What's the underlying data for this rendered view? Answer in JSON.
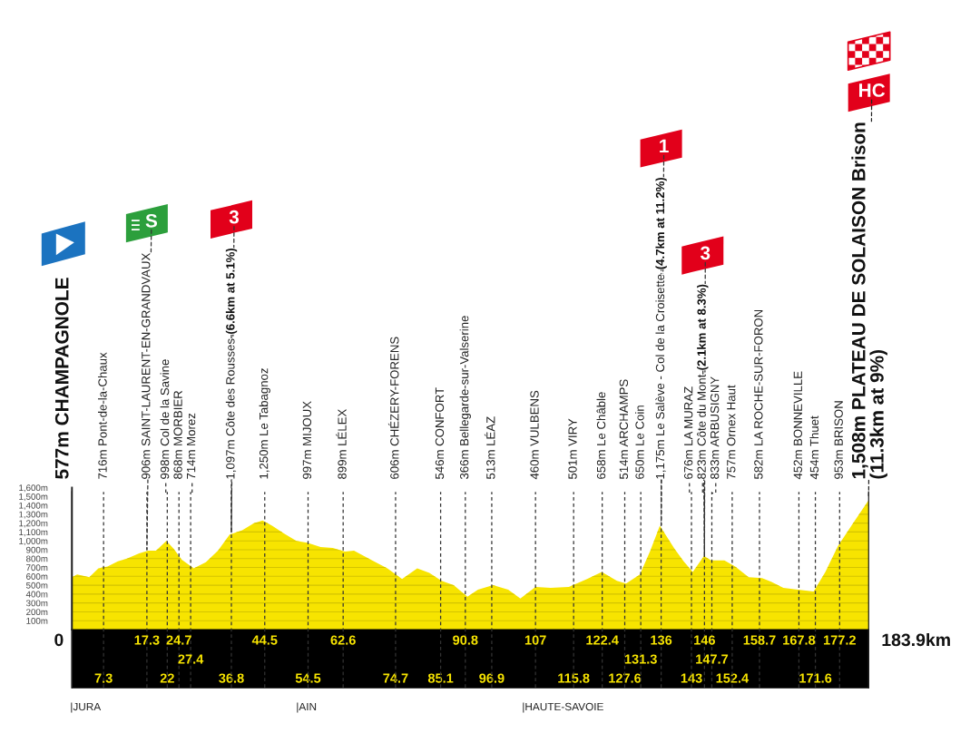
{
  "chart_data": {
    "type": "area",
    "x": [
      0,
      1.2,
      4.0,
      6.1,
      8.2,
      10.6,
      12.7,
      15.5,
      17.6,
      19.4,
      21.8,
      23.5,
      25.3,
      28.1,
      30.9,
      33.7,
      36.4,
      39.3,
      42.0,
      44.0,
      46.2,
      49.0,
      51.8,
      54.3,
      57.4,
      60.2,
      63.0,
      65.1,
      69.3,
      72.8,
      76.2,
      79.7,
      82.5,
      85.3,
      88.1,
      91.3,
      93.7,
      97.2,
      100.7,
      103.5,
      107.0,
      110.5,
      114.7,
      118.9,
      122.3,
      125.8,
      127.9,
      131.1,
      133.5,
      135.7,
      139.1,
      141.2,
      143.3,
      145.9,
      147.5,
      150.6,
      153.1,
      156.2,
      159.3,
      161.4,
      164.2,
      167.6,
      171.2,
      173.9,
      176.8,
      180.3,
      183.9
    ],
    "series": [
      {
        "color": "#f7e400",
        "values": [
          590,
          620,
          590,
          690,
          710,
          770,
          800,
          860,
          890,
          890,
          1000,
          910,
          790,
          690,
          760,
          890,
          1070,
          1120,
          1200,
          1230,
          1170,
          1080,
          1000,
          980,
          930,
          920,
          880,
          890,
          780,
          690,
          570,
          690,
          640,
          550,
          500,
          370,
          450,
          500,
          450,
          350,
          480,
          470,
          480,
          570,
          650,
          550,
          520,
          620,
          890,
          1170,
          910,
          770,
          650,
          830,
          780,
          780,
          710,
          590,
          580,
          540,
          470,
          450,
          430,
          650,
          940,
          1200,
          1460
        ]
      }
    ],
    "xlim": [
      0,
      183.9
    ],
    "xticks": [
      7.3,
      22,
      36.8,
      54.5,
      74.7,
      85.1,
      96.9,
      115.8,
      127.6,
      143,
      152.4,
      171.6
    ],
    "ylim": [
      0,
      1600
    ],
    "yticks": [
      {
        "value": 100,
        "label": "100m"
      },
      {
        "value": 200,
        "label": "200m"
      },
      {
        "value": 300,
        "label": "300m"
      },
      {
        "value": 400,
        "label": "400m"
      },
      {
        "value": 500,
        "label": "500m"
      },
      {
        "value": 600,
        "label": "600m"
      },
      {
        "value": 700,
        "label": "700m"
      },
      {
        "value": 800,
        "label": "800m"
      },
      {
        "value": 900,
        "label": "900m"
      },
      {
        "value": 1000,
        "label": "1,000m"
      },
      {
        "value": 1100,
        "label": "1,100m"
      },
      {
        "value": 1200,
        "label": "1,200m"
      },
      {
        "value": 1300,
        "label": "1,300m"
      },
      {
        "value": 1400,
        "label": "1,400m"
      },
      {
        "value": 1500,
        "label": "1,500m"
      },
      {
        "value": 1600,
        "label": "1,600m"
      }
    ],
    "grid": "y",
    "ref_lines": [
      {
        "axis": "x",
        "value": 0,
        "label": "577m CHAMPAGNOLE",
        "color": "#222222",
        "line_style": "solid"
      },
      {
        "axis": "x",
        "value": 7.3,
        "label": "716m Pont-de-la-Chaux",
        "color": "#333333",
        "line_style": "dashed"
      },
      {
        "axis": "x",
        "value": 17.3,
        "label": "906m SAINT-LAURENT-EN-GRANDVAUX",
        "color": "#333333",
        "line_style": "dashed"
      },
      {
        "axis": "x",
        "value": 22,
        "label": "998m Col de la Savine",
        "color": "#333333",
        "line_style": "dashed"
      },
      {
        "axis": "x",
        "value": 24.7,
        "label": "868m MORBIER",
        "color": "#333333",
        "line_style": "dashed"
      },
      {
        "axis": "x",
        "value": 27.4,
        "label": "714m Morez",
        "color": "#333333",
        "line_style": "dashed"
      },
      {
        "axis": "x",
        "value": 36.8,
        "label": "1,097m Côte des Rousses",
        "color": "#333333",
        "line_style": "dashed"
      },
      {
        "axis": "x",
        "value": 44.5,
        "label": "1,250m Le Tabagnoz",
        "color": "#333333",
        "line_style": "dashed"
      },
      {
        "axis": "x",
        "value": 54.5,
        "label": "997m MIJOUX",
        "color": "#333333",
        "line_style": "dashed"
      },
      {
        "axis": "x",
        "value": 62.6,
        "label": "899m LÉLEX",
        "color": "#333333",
        "line_style": "dashed"
      },
      {
        "axis": "x",
        "value": 74.7,
        "label": "606m CHÉZERY-FORENS",
        "color": "#333333",
        "line_style": "dashed"
      },
      {
        "axis": "x",
        "value": 85.1,
        "label": "546m CONFORT",
        "color": "#333333",
        "line_style": "dashed"
      },
      {
        "axis": "x",
        "value": 90.8,
        "label": "366m Bellegarde-sur-Valserine",
        "color": "#333333",
        "line_style": "dashed"
      },
      {
        "axis": "x",
        "value": 96.9,
        "label": "513m LÉAZ",
        "color": "#333333",
        "line_style": "dashed"
      },
      {
        "axis": "x",
        "value": 107,
        "label": "460m VULBENS",
        "color": "#333333",
        "line_style": "dashed"
      },
      {
        "axis": "x",
        "value": 115.8,
        "label": "501m VIRY",
        "color": "#333333",
        "line_style": "dashed"
      },
      {
        "axis": "x",
        "value": 122.4,
        "label": "658m Le Châble",
        "color": "#333333",
        "line_style": "dashed"
      },
      {
        "axis": "x",
        "value": 127.6,
        "label": "514m ARCHAMPS",
        "color": "#333333",
        "line_style": "dashed"
      },
      {
        "axis": "x",
        "value": 131.3,
        "label": "650m Le Coin",
        "color": "#333333",
        "line_style": "dashed"
      },
      {
        "axis": "x",
        "value": 136,
        "label": "1,175m Le Salève - Col de la Croisette",
        "color": "#333333",
        "line_style": "dashed"
      },
      {
        "axis": "x",
        "value": 143,
        "label": "676m LA MURAZ",
        "color": "#333333",
        "line_style": "dashed"
      },
      {
        "axis": "x",
        "value": 146,
        "label": "823m Côte du Mont",
        "color": "#333333",
        "line_style": "dashed"
      },
      {
        "axis": "x",
        "value": 147.7,
        "label": "833m ARBUSIGNY",
        "color": "#333333",
        "line_style": "dashed"
      },
      {
        "axis": "x",
        "value": 152.4,
        "label": "757m Ornex Haut",
        "color": "#333333",
        "line_style": "dashed"
      },
      {
        "axis": "x",
        "value": 158.7,
        "label": "582m LA ROCHE-SUR-FORON",
        "color": "#333333",
        "line_style": "dashed"
      },
      {
        "axis": "x",
        "value": 167.8,
        "label": "452m BONNEVILLE",
        "color": "#333333",
        "line_style": "dashed"
      },
      {
        "axis": "x",
        "value": 171.6,
        "label": "454m Thuet",
        "color": "#333333",
        "line_style": "dashed"
      },
      {
        "axis": "x",
        "value": 177.2,
        "label": "953m BRISON",
        "color": "#333333",
        "line_style": "dashed"
      },
      {
        "axis": "x",
        "value": 183.9,
        "label": "1,508m PLATEAU DE SOLAISON Brison\n(11.3km at 9%)",
        "color": "#222222",
        "line_style": "solid"
      }
    ],
    "annotations": [
      {
        "text": "S",
        "x": 17.3,
        "y": 906
      },
      {
        "text": "(6.6km at 5.1%)",
        "x": 36.8,
        "y": 1097
      },
      {
        "text": "3",
        "x": 36.8,
        "y": 1097
      },
      {
        "text": "(4.7km at 11.2%)",
        "x": 136,
        "y": 1175
      },
      {
        "text": "1",
        "x": 136,
        "y": 1175
      },
      {
        "text": "(2.1km at 8.3%)",
        "x": 146,
        "y": 823
      },
      {
        "text": "3",
        "x": 146,
        "y": 823
      },
      {
        "text": "HC",
        "x": 183.9,
        "y": 1508
      },
      {
        "text": "0",
        "x": 0,
        "y": 0
      },
      {
        "text": "17.3",
        "x": 17.3,
        "y": 0
      },
      {
        "text": "24.7",
        "x": 24.7,
        "y": 0
      },
      {
        "text": "27.4",
        "x": 27.4,
        "y": 0
      },
      {
        "text": "44.5",
        "x": 44.5,
        "y": 0
      },
      {
        "text": "62.6",
        "x": 62.6,
        "y": 0
      },
      {
        "text": "90.8",
        "x": 90.8,
        "y": 0
      },
      {
        "text": "107",
        "x": 107,
        "y": 0
      },
      {
        "text": "122.4",
        "x": 122.4,
        "y": 0
      },
      {
        "text": "131.3",
        "x": 131.3,
        "y": 0
      },
      {
        "text": "136",
        "x": 136,
        "y": 0
      },
      {
        "text": "146",
        "x": 146,
        "y": 0
      },
      {
        "text": "147.7",
        "x": 147.7,
        "y": 0
      },
      {
        "text": "158.7",
        "x": 158.7,
        "y": 0
      },
      {
        "text": "167.8",
        "x": 167.8,
        "y": 0
      },
      {
        "text": "177.2",
        "x": 177.2,
        "y": 0
      },
      {
        "text": "183.9km",
        "x": 183.9,
        "y": 0
      },
      "|JURA",
      "|AIN",
      "|HAUTE-SAVOIE"
    ]
  }
}
